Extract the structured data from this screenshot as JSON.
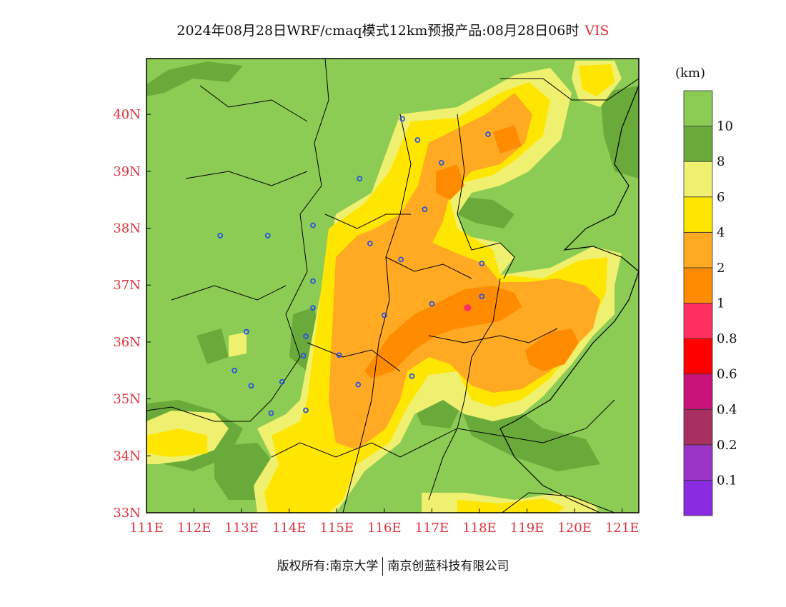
{
  "title": {
    "main": "2024年08月28日WRF/cmaq模式12km预报产品:08月28日06时",
    "variable": "VIS"
  },
  "legend": {
    "unit": "(km)",
    "bins": [
      {
        "label": "0.1",
        "color": "#8a2be2"
      },
      {
        "label": "0.2",
        "color": "#9b35c8"
      },
      {
        "label": "0.4",
        "color": "#a83060"
      },
      {
        "label": "0.6",
        "color": "#c8147a"
      },
      {
        "label": "0.8",
        "color": "#ff0000"
      },
      {
        "label": "1",
        "color": "#ff3060"
      },
      {
        "label": "2",
        "color": "#ff8c00"
      },
      {
        "label": "4",
        "color": "#ffaa22"
      },
      {
        "label": "6",
        "color": "#ffe600"
      },
      {
        "label": "8",
        "color": "#f0f070"
      },
      {
        "label": "10",
        "color": "#6aaa3a"
      },
      {
        "label": "",
        "color": "#8ccc55"
      }
    ]
  },
  "axes": {
    "lon_labels": [
      "111E",
      "112E",
      "113E",
      "114E",
      "115E",
      "116E",
      "117E",
      "118E",
      "119E",
      "120E",
      "121E"
    ],
    "lat_labels": [
      "33N",
      "34N",
      "35N",
      "36N",
      "37N",
      "38N",
      "39N",
      "40N"
    ],
    "lon_range": [
      111,
      121.35
    ],
    "lat_range": [
      33,
      40.98
    ]
  },
  "stations": [
    [
      116.38,
      39.92
    ],
    [
      116.7,
      39.55
    ],
    [
      118.18,
      39.65
    ],
    [
      117.2,
      39.15
    ],
    [
      115.48,
      38.87
    ],
    [
      116.85,
      38.33
    ],
    [
      114.5,
      38.05
    ],
    [
      112.55,
      37.87
    ],
    [
      113.55,
      37.87
    ],
    [
      115.7,
      37.73
    ],
    [
      116.35,
      37.45
    ],
    [
      118.05,
      37.38
    ],
    [
      114.5,
      37.07
    ],
    [
      118.05,
      36.8
    ],
    [
      117.0,
      36.67
    ],
    [
      114.5,
      36.6
    ],
    [
      116.0,
      36.47
    ],
    [
      113.1,
      36.18
    ],
    [
      114.35,
      36.1
    ],
    [
      114.3,
      35.76
    ],
    [
      115.05,
      35.77
    ],
    [
      112.85,
      35.5
    ],
    [
      116.58,
      35.4
    ],
    [
      113.85,
      35.3
    ],
    [
      113.2,
      35.23
    ],
    [
      115.45,
      35.25
    ],
    [
      114.35,
      34.8
    ],
    [
      113.62,
      34.75
    ]
  ],
  "hotspot": [
    117.75,
    36.6
  ],
  "footer": {
    "left": "版权所有:南京大学",
    "right": "南京创蓝科技有限公司"
  }
}
